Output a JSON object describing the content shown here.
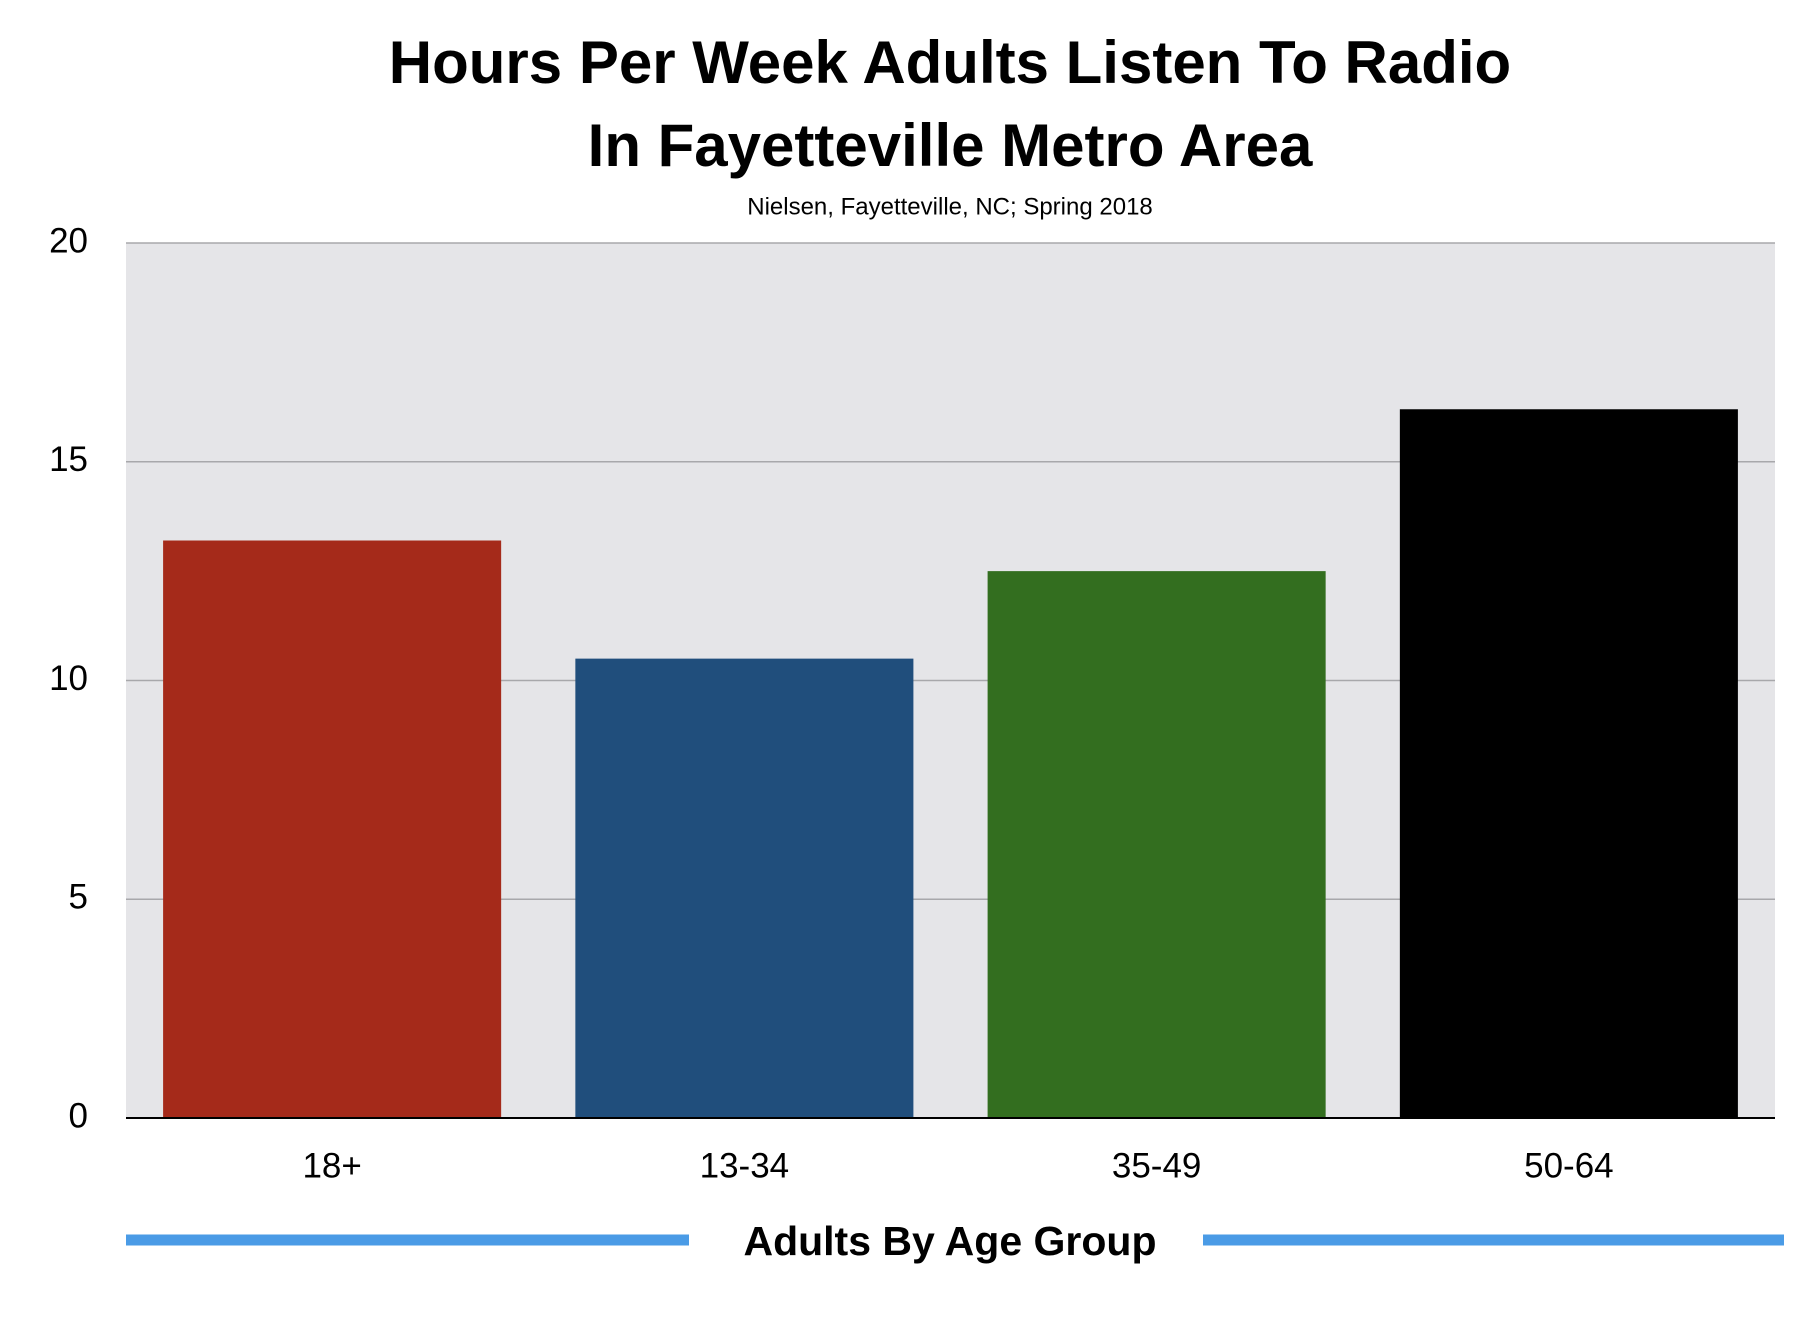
{
  "chart_data": {
    "type": "bar",
    "title": [
      "Hours Per Week Adults Listen To Radio",
      "In Fayetteville Metro Area"
    ],
    "subtitle": "Nielsen, Fayetteville, NC; Spring 2018",
    "x_label": "Adults By Age Group",
    "categories": [
      "18+",
      "13-34",
      "35-49",
      "50-64"
    ],
    "values": [
      13.2,
      10.5,
      12.5,
      16.2
    ],
    "colors": [
      "#a52a1a",
      "#204e7c",
      "#336e1f",
      "#000000"
    ],
    "ylim": [
      0,
      20
    ],
    "yticks": [
      0,
      5,
      10,
      15,
      20
    ],
    "grid": true
  }
}
